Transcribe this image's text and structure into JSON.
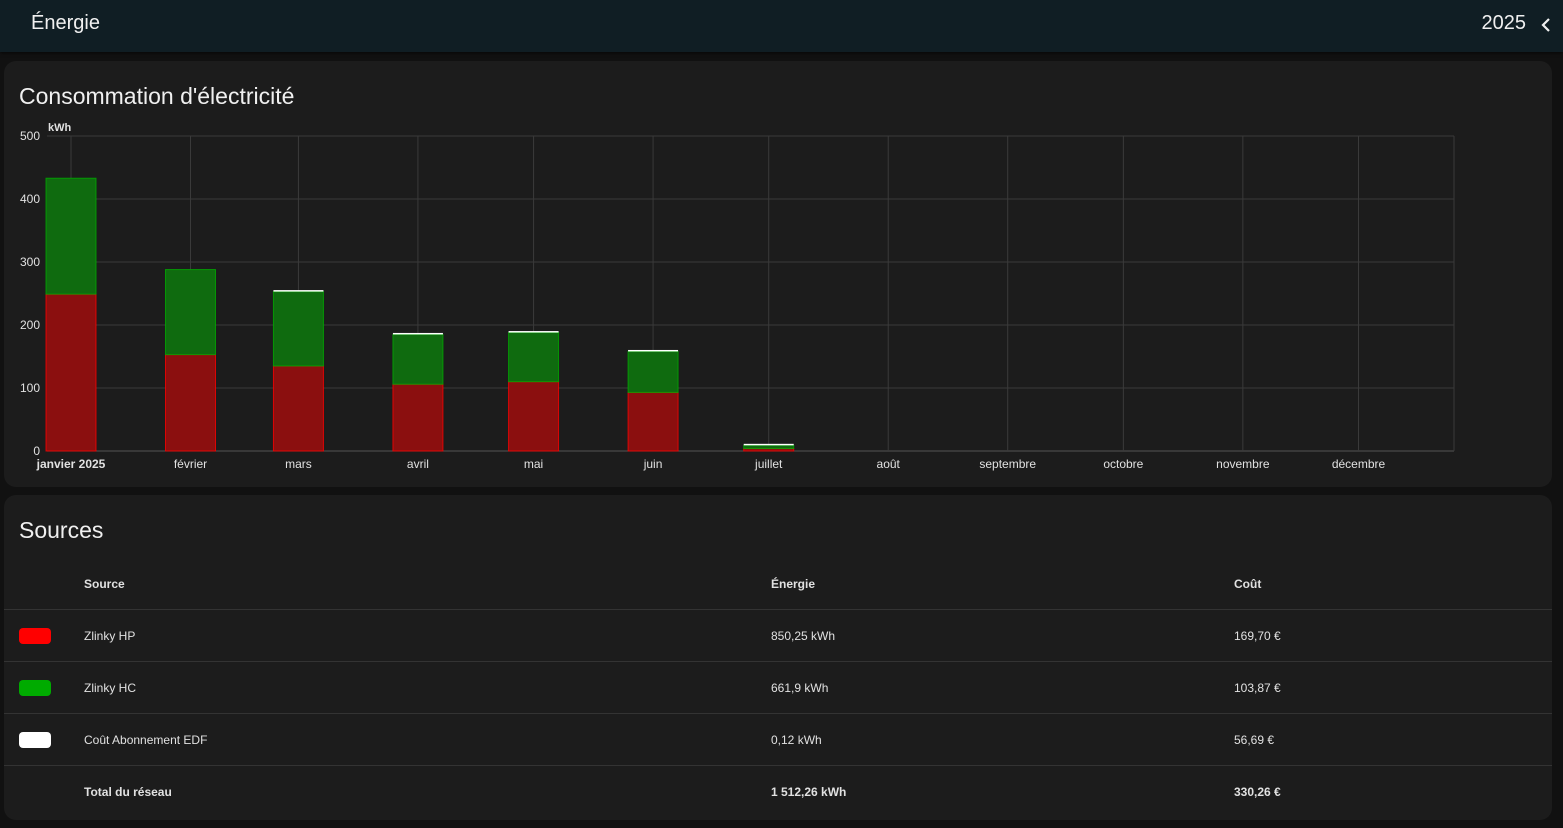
{
  "header": {
    "title": "Énergie",
    "year": "2025"
  },
  "chart_card": {
    "title": "Consommation d'électricité"
  },
  "chart_data": {
    "type": "bar",
    "stacked": true,
    "ylabel": "kWh",
    "ylim": [
      0,
      500
    ],
    "yticks": [
      "0",
      "100",
      "200",
      "300",
      "400",
      "500"
    ],
    "categories": [
      "janvier 2025",
      "février",
      "mars",
      "avril",
      "mai",
      "juin",
      "juillet",
      "août",
      "septembre",
      "octobre",
      "novembre",
      "décembre"
    ],
    "series": [
      {
        "name": "Zlinky HP",
        "color": "#ff0000",
        "values": [
          249,
          153,
          135,
          106,
          110,
          93,
          4,
          0,
          0,
          0,
          0,
          0
        ]
      },
      {
        "name": "Zlinky HC",
        "color": "#00ab00",
        "values": [
          184,
          135,
          118,
          79,
          78,
          65,
          5,
          0,
          0,
          0,
          0,
          0
        ]
      },
      {
        "name": "Coût Abonnement EDF",
        "color": "#ffffff",
        "values": [
          0,
          0,
          0.02,
          0.02,
          0.02,
          0.02,
          0.02,
          0,
          0,
          0,
          0,
          0
        ]
      }
    ],
    "grid": true,
    "legend": "none"
  },
  "sources_card": {
    "title": "Sources",
    "headers": {
      "source": "Source",
      "energy": "Énergie",
      "cost": "Coût"
    },
    "rows": [
      {
        "color": "#ff0000",
        "name": "Zlinky HP",
        "energy": "850,25 kWh",
        "cost": "169,70 €"
      },
      {
        "color": "#00ab00",
        "name": "Zlinky HC",
        "energy": "661,9 kWh",
        "cost": "103,87 €"
      },
      {
        "color": "#ffffff",
        "name": "Coût Abonnement EDF",
        "energy": "0,12 kWh",
        "cost": "56,69 €"
      }
    ],
    "total": {
      "name": "Total du réseau",
      "energy": "1 512,26 kWh",
      "cost": "330,26 €"
    }
  }
}
